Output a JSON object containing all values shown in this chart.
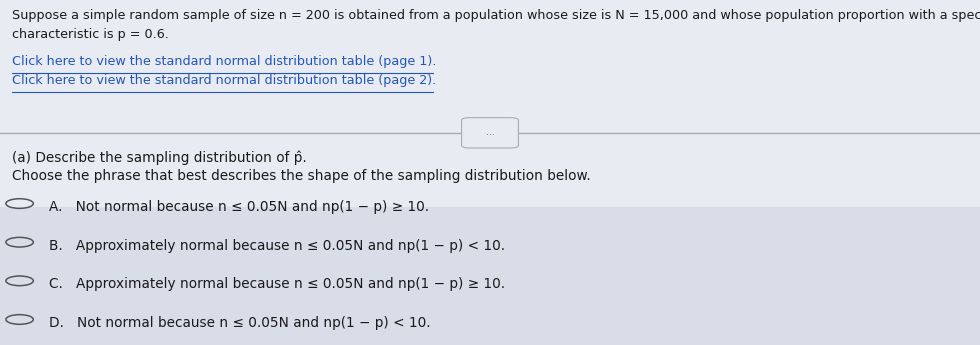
{
  "bg_color_top": "#e8ecf2",
  "bg_color_bottom": "#d8dde8",
  "header_text_line1": "Suppose a simple random sample of size n = 200 is obtained from a population whose size is N = 15,000 and whose population proportion with a specified",
  "header_text_line2": "characteristic is p = 0.6.",
  "link1": "Click here to view the standard normal distribution table (page 1).",
  "link2": "Click here to view the standard normal distribution table (page 2).",
  "link_color": "#2255bb",
  "divider_button_text": "...",
  "part_a_line1": "(a) Describe the sampling distribution of p̂.",
  "part_a_line2": "Choose the phrase that best describes the shape of the sampling distribution below.",
  "option_A": "A.   Not normal because n ≤ 0.05N and np(1 − p) ≥ 10.",
  "option_B": "B.   Approximately normal because n ≤ 0.05N and np(1 − p) < 10.",
  "option_C": "C.   Approximately normal because n ≤ 0.05N and np(1 − p) ≥ 10.",
  "option_D": "D.   Not normal because n ≤ 0.05N and np(1 − p) < 10.",
  "text_color": "#1a1a1a",
  "font_size_header": 9.2,
  "font_size_links": 9.2,
  "font_size_body": 9.8,
  "font_size_options": 9.8,
  "font_size_btn": 6.5
}
